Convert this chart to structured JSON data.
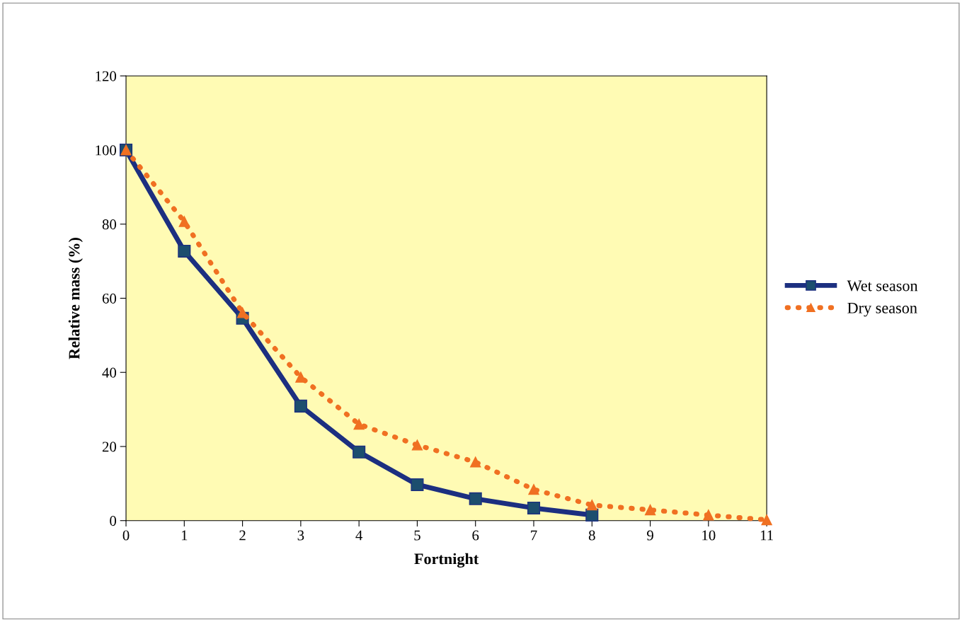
{
  "chart_data": {
    "type": "line",
    "xlabel": "Fortnight",
    "ylabel": "Relative mass (%)",
    "x": [
      0,
      1,
      2,
      3,
      4,
      5,
      6,
      7,
      8,
      9,
      10,
      11
    ],
    "series": [
      {
        "name": "Wet season",
        "color": "#1c2f80",
        "marker": "square",
        "line_style": "solid",
        "values": [
          100,
          72.7,
          54.6,
          30.9,
          18.5,
          9.7,
          5.9,
          3.4,
          1.5,
          null,
          null,
          null
        ]
      },
      {
        "name": "Dry season",
        "color": "#f07022",
        "marker": "triangle",
        "line_style": "dotted",
        "values": [
          100,
          80.7,
          56.1,
          38.7,
          26,
          20.4,
          15.8,
          8.4,
          4.2,
          2.9,
          1.5,
          0.2
        ]
      }
    ],
    "xlim": [
      0,
      11
    ],
    "xticks": [
      0,
      1,
      2,
      3,
      4,
      5,
      6,
      7,
      8,
      9,
      10,
      11
    ],
    "ylim": [
      0,
      120
    ],
    "yticks": [
      0,
      20,
      40,
      60,
      80,
      100,
      120
    ],
    "grid": false,
    "legend": "right"
  }
}
